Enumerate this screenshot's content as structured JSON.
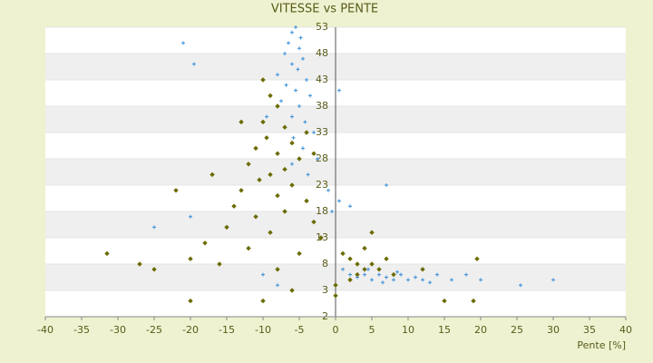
{
  "chart_data": {
    "type": "scatter",
    "title": "VITESSE vs PENTE",
    "x_label": "Pente [%]",
    "xlim": [
      -40,
      40
    ],
    "xticks": [
      -40,
      -35,
      -30,
      -25,
      -20,
      -15,
      -10,
      -5,
      0,
      5,
      10,
      15,
      20,
      25,
      30,
      35,
      40
    ],
    "ylim": [
      -2,
      53
    ],
    "yticks": [
      -2,
      3,
      8,
      13,
      18,
      23,
      28,
      33,
      38,
      43,
      48,
      53
    ],
    "series": [
      {
        "color": "#3a8fd8",
        "marker": "plus",
        "x": [
          -5.5,
          -6,
          -4.8,
          -6.5,
          -5,
          -7,
          -4.5,
          -6,
          -5.2,
          -8,
          -4,
          -6.8,
          -5.5,
          -3.5,
          -7.5,
          -5,
          -6,
          -4.2,
          -3,
          -5.8,
          -4.5,
          -2.5,
          -6,
          -3.8,
          -1,
          0.5,
          -0.5,
          2,
          7,
          -21,
          -19.5,
          -25,
          -20,
          -10,
          -8,
          1,
          2,
          3,
          4,
          5,
          6,
          7,
          8,
          9,
          10,
          11,
          12,
          14,
          16,
          18,
          20,
          25.5,
          30,
          3,
          4.5,
          6.5,
          8.5,
          13,
          0.5,
          -9.5
        ],
        "values": [
          53,
          52,
          51,
          50,
          49,
          48,
          47,
          46,
          45,
          44,
          43,
          42,
          41,
          40,
          39,
          38,
          36,
          35,
          33,
          32,
          30,
          28,
          27,
          25,
          22,
          20,
          18,
          19,
          23,
          50,
          46,
          15,
          17,
          6,
          4,
          7,
          6,
          5.5,
          6,
          5,
          6,
          5.5,
          5,
          6,
          5,
          5.5,
          5,
          6,
          5,
          6,
          5,
          4,
          5,
          8,
          7,
          4.5,
          6.5,
          4.5,
          41,
          36
        ]
      },
      {
        "color": "#6b6b00",
        "marker": "diamond",
        "x": [
          -9,
          -8,
          -10,
          -7,
          -9.5,
          -6,
          -11,
          -8,
          -5,
          -12,
          -7,
          -9,
          -10.5,
          -6,
          -13,
          -8,
          -4,
          -14,
          -7,
          -11,
          -3,
          -15,
          -9,
          -2,
          -18,
          -12,
          -5,
          -20,
          -16,
          -8,
          -25,
          -31.5,
          -27,
          -20,
          -10,
          -6,
          0,
          0,
          1,
          2,
          3,
          4,
          5,
          6,
          3,
          2,
          7,
          4,
          5,
          8,
          12,
          15,
          19,
          19.5,
          -22,
          -17,
          -13,
          -10,
          -4,
          -3
        ],
        "values": [
          40,
          38,
          35,
          34,
          32,
          31,
          30,
          29,
          28,
          27,
          26,
          25,
          24,
          23,
          22,
          21,
          20,
          19,
          18,
          17,
          16,
          15,
          14,
          13,
          12,
          11,
          10,
          9,
          8,
          7,
          7,
          10,
          8,
          1,
          1,
          3,
          2,
          4,
          10,
          9,
          8,
          7,
          8,
          7,
          6,
          5,
          9,
          11,
          14,
          6,
          7,
          1,
          1,
          9,
          22,
          25,
          35,
          43,
          33,
          29
        ]
      }
    ]
  }
}
